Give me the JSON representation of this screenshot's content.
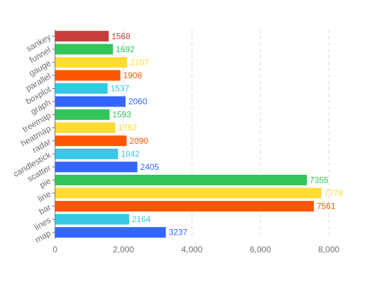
{
  "chart_data": {
    "type": "bar",
    "orientation": "horizontal",
    "categories": [
      "map",
      "lines",
      "bar",
      "line",
      "pie",
      "scatter",
      "candlestick",
      "radar",
      "heatmap",
      "treemap",
      "graph",
      "boxplot",
      "parallel",
      "gauge",
      "funnel",
      "sankey"
    ],
    "values": [
      3237,
      2164,
      7561,
      7778,
      7355,
      2405,
      1842,
      2090,
      1762,
      1593,
      2060,
      1537,
      1908,
      2107,
      1692,
      1568
    ],
    "value_labels": [
      "3237",
      "2164",
      "7561",
      "7778",
      "7355",
      "2405",
      "1842",
      "2090",
      "1762",
      "1593",
      "2060",
      "1537",
      "1908",
      "2107",
      "1692",
      "1568"
    ],
    "colors": [
      "#3366ff",
      "#37c8e6",
      "#ff5500",
      "#ffdb33",
      "#33c45a",
      "#3366ff",
      "#37c8e6",
      "#ff5500",
      "#ffdb33",
      "#33c45a",
      "#3366ff",
      "#37c8e6",
      "#ff5500",
      "#ffdb33",
      "#33c45a",
      "#c83c3c"
    ],
    "xlim": [
      0,
      8800
    ],
    "x_ticks": [
      0,
      2000,
      4000,
      6000,
      8000
    ],
    "x_tick_labels": [
      "0",
      "2,000",
      "4,000",
      "6,000",
      "8,000"
    ],
    "grid": "vertical dashed",
    "title": "",
    "xlabel": "",
    "ylabel": ""
  }
}
